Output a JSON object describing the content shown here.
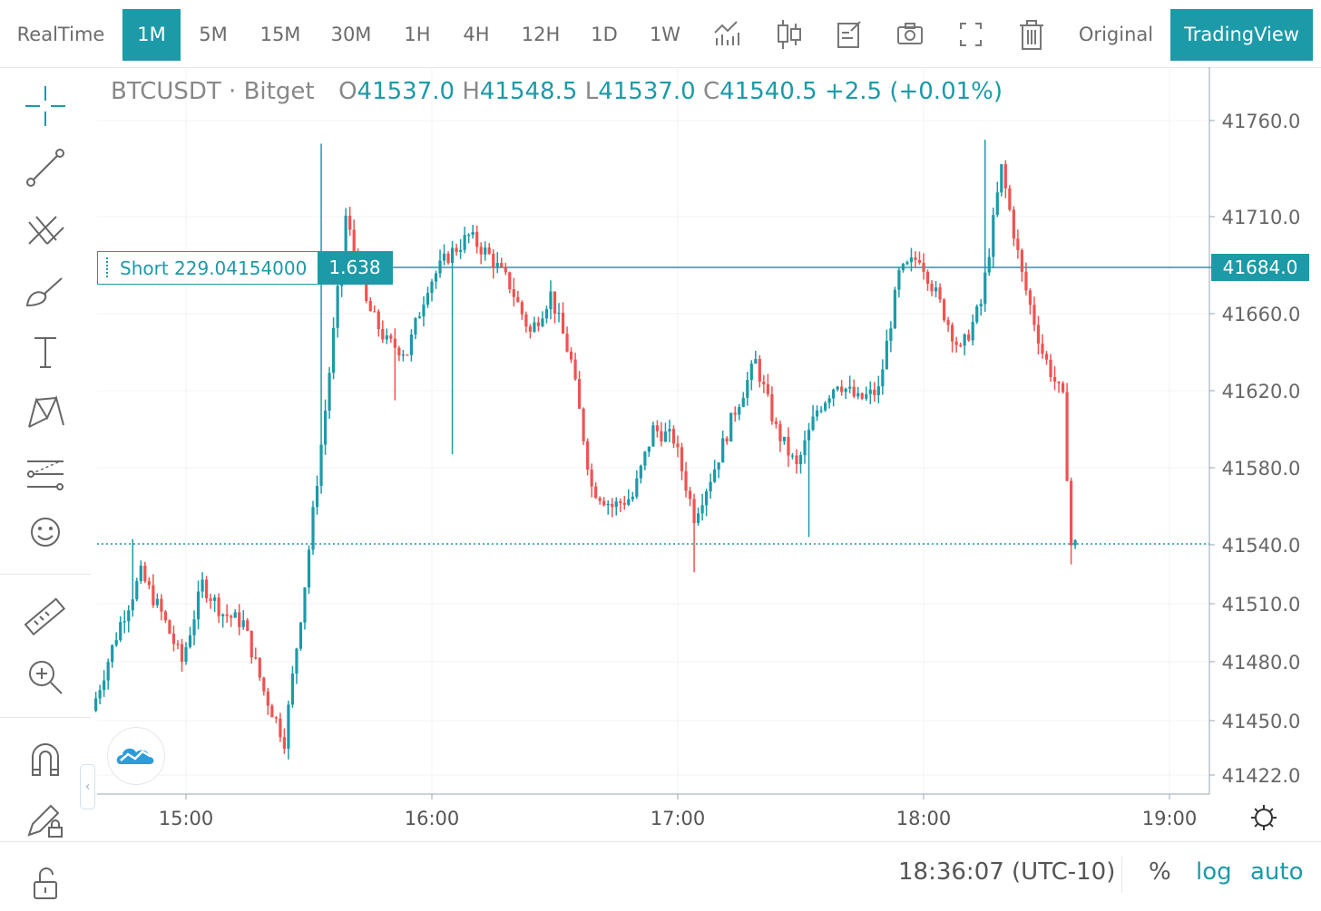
{
  "toolbar": {
    "intervals": [
      {
        "label": "RealTime",
        "active": false
      },
      {
        "label": "1M",
        "active": true
      },
      {
        "label": "5M",
        "active": false
      },
      {
        "label": "15M",
        "active": false
      },
      {
        "label": "30M",
        "active": false
      },
      {
        "label": "1H",
        "active": false
      },
      {
        "label": "4H",
        "active": false
      },
      {
        "label": "12H",
        "active": false
      },
      {
        "label": "1D",
        "active": false
      },
      {
        "label": "1W",
        "active": false
      }
    ],
    "icons": [
      "indicators-icon",
      "candle-style-icon",
      "notes-icon",
      "camera-icon",
      "fullscreen-icon",
      "trash-icon"
    ],
    "original_label": "Original",
    "tradingview_label": "TradingView"
  },
  "left_tools": [
    "crosshair-icon",
    "trend-line-icon",
    "fork-icon",
    "brush-icon",
    "text-icon",
    "pattern-icon",
    "prediction-icon",
    "emoji-icon",
    "ruler-icon",
    "zoom-in-icon",
    "magnet-icon",
    "lock-pencil-icon",
    "unlock-icon"
  ],
  "legend": {
    "symbol": "BTCUSDT · Bitget",
    "o_key": "O",
    "o": "41537.0",
    "h_key": "H",
    "h": "41548.5",
    "l_key": "L",
    "l": "41537.0",
    "c_key": "C",
    "c": "41540.5",
    "change": "+2.5 (+0.01%)"
  },
  "position_line": {
    "label": "Short 229.04154000",
    "value": "1.638",
    "price_tag": "41684.0"
  },
  "bottom": {
    "time": "18:36:07 (UTC-10)",
    "percent": "%",
    "log": "log",
    "auto": "auto"
  },
  "colors": {
    "up": "#1c9aa8",
    "down": "#ef5350",
    "accent": "#1c9aa8"
  },
  "chart_data": {
    "type": "candlestick",
    "symbol": "BTCUSDT",
    "exchange": "Bitget",
    "interval": "1M",
    "y_ticks": [
      41760.0,
      41710.0,
      41660.0,
      41620.0,
      41580.0,
      41540.0,
      41510.0,
      41480.0,
      41450.0,
      41422.0
    ],
    "y_tick_labels": [
      "41760.0",
      "41710.0",
      "41660.0",
      "41620.0",
      "41580.0",
      "41540.0",
      "41510.0",
      "41480.0",
      "41450.0",
      "41422.0"
    ],
    "x_ticks": [
      "15:00",
      "16:00",
      "17:00",
      "18:00",
      "19:00"
    ],
    "position_line_price": 41684.0,
    "last_price": 41540.5,
    "path_times": [
      "14:38",
      "14:45",
      "14:50",
      "14:55",
      "15:00",
      "15:05",
      "15:10",
      "15:15",
      "15:20",
      "15:25",
      "15:30",
      "15:35",
      "15:40",
      "15:45",
      "15:50",
      "15:55",
      "16:00",
      "16:05",
      "16:10",
      "16:15",
      "16:20",
      "16:25",
      "16:30",
      "16:35",
      "16:40",
      "16:45",
      "16:50",
      "16:55",
      "17:00",
      "17:05",
      "17:10",
      "17:15",
      "17:20",
      "17:25",
      "17:30",
      "17:35",
      "17:40",
      "17:45",
      "17:50",
      "17:55",
      "18:00",
      "18:05",
      "18:10",
      "18:15",
      "18:20",
      "18:25",
      "18:30",
      "18:35",
      "18:37"
    ],
    "path_prices": [
      41455,
      41500,
      41525,
      41505,
      41480,
      41520,
      41505,
      41500,
      41465,
      41440,
      41520,
      41610,
      41710,
      41665,
      41645,
      41640,
      41675,
      41690,
      41700,
      41690,
      41675,
      41650,
      41670,
      41635,
      41570,
      41560,
      41565,
      41600,
      41595,
      41555,
      41580,
      41610,
      41635,
      41600,
      41580,
      41610,
      41625,
      41615,
      41620,
      41680,
      41690,
      41665,
      41640,
      41665,
      41735,
      41680,
      41640,
      41615,
      41540
    ],
    "spikes": [
      {
        "time": "14:47",
        "price": 41543
      },
      {
        "time": "15:33",
        "price": 41748
      },
      {
        "time": "15:51",
        "price": 41615
      },
      {
        "time": "16:05",
        "price": 41587
      },
      {
        "time": "17:04",
        "price": 41526
      },
      {
        "time": "17:32",
        "price": 41544
      },
      {
        "time": "18:15",
        "price": 41750
      },
      {
        "time": "18:36",
        "price": 41530
      }
    ]
  }
}
